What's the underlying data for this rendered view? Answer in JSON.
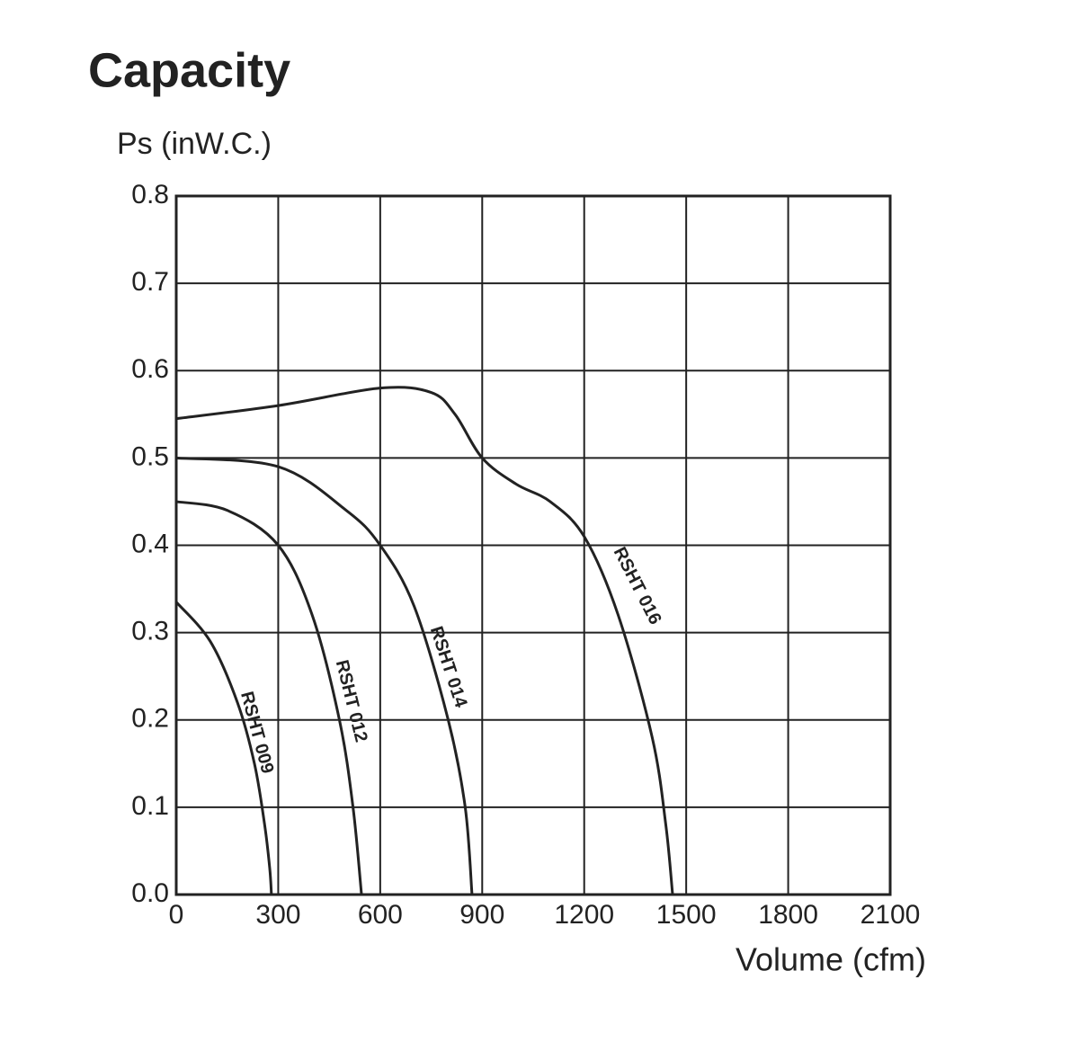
{
  "chart_data": {
    "type": "line",
    "title": "Capacity",
    "y_label": "Ps (inW.C.)",
    "x_label": "Volume (cfm)",
    "xlim": [
      0,
      2100
    ],
    "xticks": [
      0,
      300,
      600,
      900,
      1200,
      1500,
      1800,
      2100
    ],
    "ylim": [
      0,
      0.8
    ],
    "yticks": [
      {
        "value": 0,
        "label": "0.0"
      },
      {
        "value": 0.1,
        "label": "0.1"
      },
      {
        "value": 0.2,
        "label": "0.2"
      },
      {
        "value": 0.3,
        "label": "0.3"
      },
      {
        "value": 0.4,
        "label": "0.4"
      },
      {
        "value": 0.5,
        "label": "0.5"
      },
      {
        "value": 0.6,
        "label": "0.6"
      },
      {
        "value": 0.7,
        "label": "0.7"
      },
      {
        "value": 0.8,
        "label": "0.8"
      }
    ],
    "grid": true,
    "series": [
      {
        "name": "RSHT 009",
        "color": "#222222",
        "x": [
          0,
          100,
          180,
          230,
          260,
          275,
          280
        ],
        "values": [
          0.335,
          0.29,
          0.22,
          0.15,
          0.08,
          0.03,
          0
        ]
      },
      {
        "name": "RSHT 012",
        "color": "#222222",
        "x": [
          0,
          150,
          300,
          400,
          480,
          520,
          545
        ],
        "values": [
          0.45,
          0.44,
          0.4,
          0.32,
          0.2,
          0.1,
          0
        ]
      },
      {
        "name": "RSHT 014",
        "color": "#222222",
        "x": [
          0,
          300,
          500,
          600,
          700,
          800,
          850,
          870
        ],
        "values": [
          0.5,
          0.49,
          0.44,
          0.4,
          0.33,
          0.2,
          0.1,
          0
        ]
      },
      {
        "name": "RSHT 016",
        "color": "#222222",
        "x": [
          0,
          300,
          600,
          750,
          820,
          900,
          1000,
          1100,
          1200,
          1300,
          1400,
          1440,
          1460
        ],
        "values": [
          0.545,
          0.56,
          0.58,
          0.575,
          0.55,
          0.5,
          0.47,
          0.45,
          0.41,
          0.32,
          0.18,
          0.08,
          0
        ]
      }
    ]
  }
}
